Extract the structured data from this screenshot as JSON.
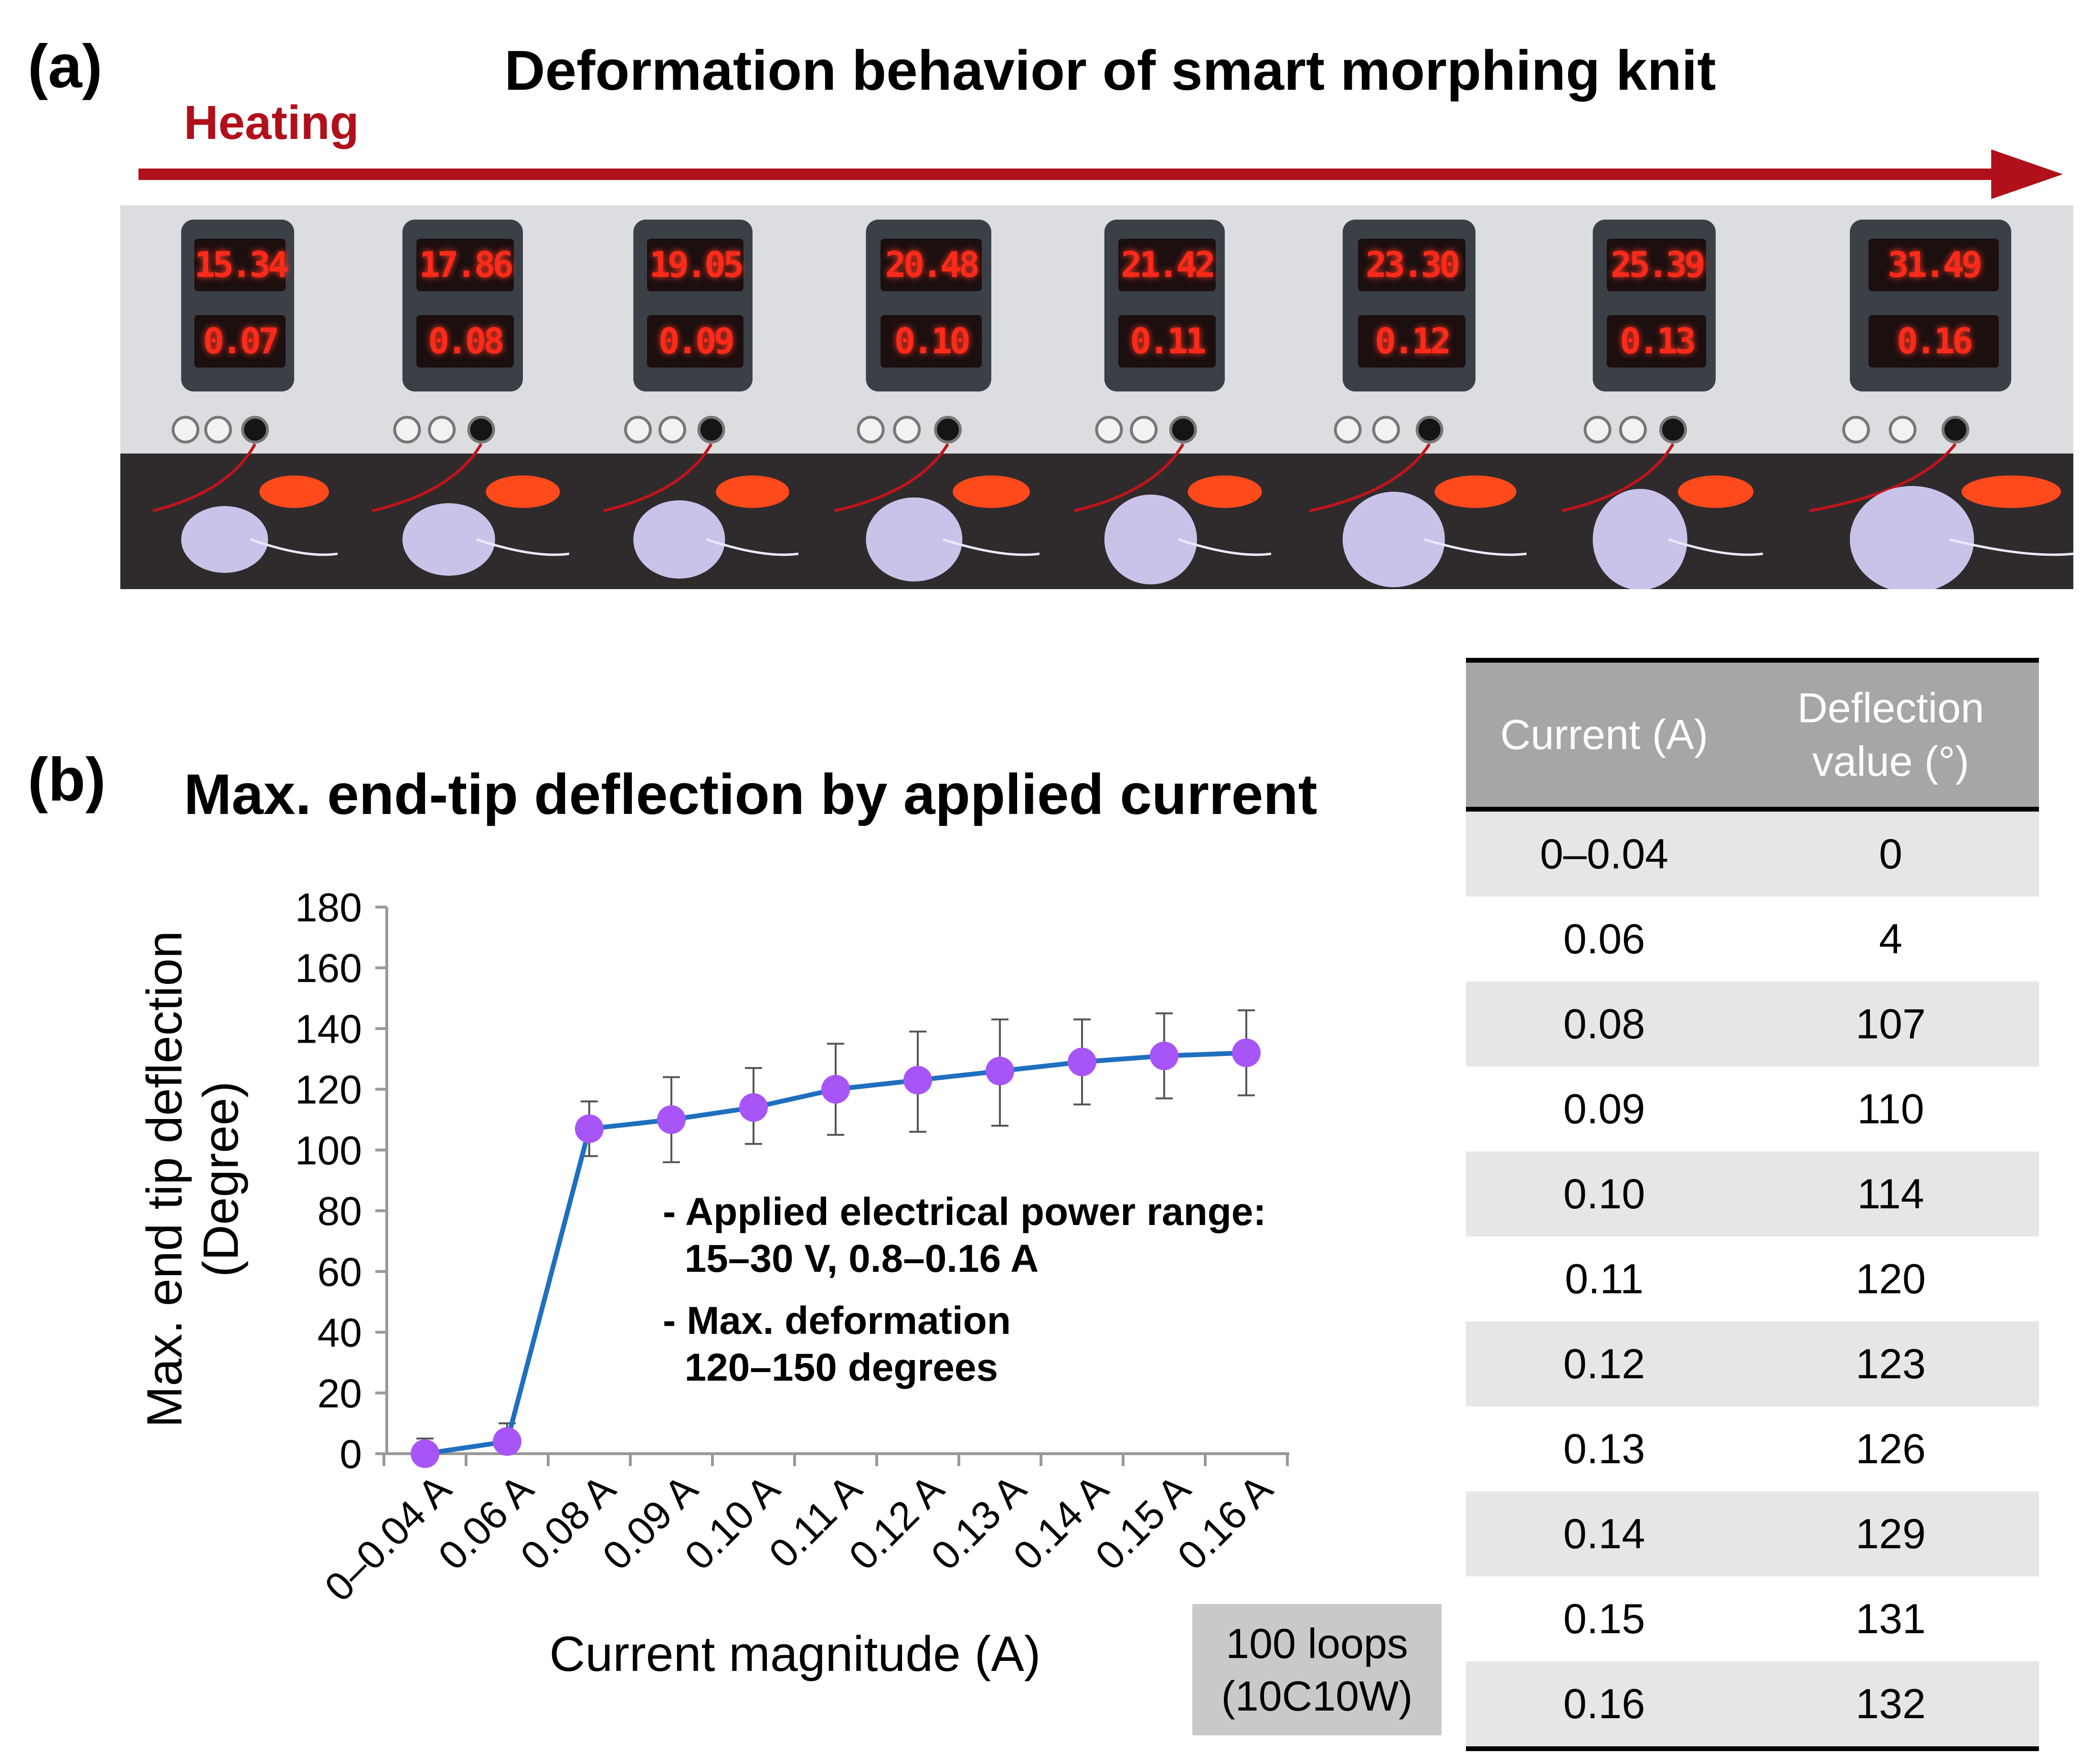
{
  "panel_a": {
    "label": "(a)",
    "title": "Deformation behavior of smart morphing knit",
    "arrow_label": "Heating",
    "arrow_color": "#b0101a",
    "frames": [
      {
        "voltage": "15.34",
        "current": "0.07"
      },
      {
        "voltage": "17.86",
        "current": "0.08"
      },
      {
        "voltage": "19.05",
        "current": "0.09"
      },
      {
        "voltage": "20.48",
        "current": "0.10"
      },
      {
        "voltage": "21.42",
        "current": "0.11"
      },
      {
        "voltage": "23.30",
        "current": "0.12"
      },
      {
        "voltage": "25.39",
        "current": "0.13"
      },
      {
        "voltage": "31.49",
        "current": "0.16"
      }
    ]
  },
  "panel_b": {
    "label": "(b)",
    "title": "Max. end-tip deflection by applied current",
    "annotation": [
      "- Applied electrical power range:\n  15–30 V, 0.8–0.16 A",
      "- Max. deformation\n  120–150 degrees"
    ],
    "loops_box": [
      "100 loops",
      "(10C10W)"
    ],
    "table": {
      "headers": [
        "Current (A)",
        "Deflection value (°)"
      ],
      "rows": [
        [
          "0–0.04",
          "0"
        ],
        [
          "0.06",
          "4"
        ],
        [
          "0.08",
          "107"
        ],
        [
          "0.09",
          "110"
        ],
        [
          "0.10",
          "114"
        ],
        [
          "0.11",
          "120"
        ],
        [
          "0.12",
          "123"
        ],
        [
          "0.13",
          "126"
        ],
        [
          "0.14",
          "129"
        ],
        [
          "0.15",
          "131"
        ],
        [
          "0.16",
          "132"
        ]
      ]
    }
  },
  "chart_data": {
    "type": "line",
    "title": "Max. end-tip deflection by applied current",
    "xlabel": "Current magnitude (A)",
    "ylabel": [
      "Max.  end tip deflection",
      "(Degree)"
    ],
    "categories": [
      "0–0.04 A",
      "0.06 A",
      "0.08 A",
      "0.09 A",
      "0.10 A",
      "0.11 A",
      "0.12 A",
      "0.13 A",
      "0.14 A",
      "0.15 A",
      "0.16 A"
    ],
    "series": [
      {
        "name": "Max. end tip deflection",
        "values": [
          0,
          4,
          107,
          110,
          114,
          120,
          123,
          126,
          129,
          131,
          132
        ],
        "error_low": [
          0,
          2,
          98,
          96,
          102,
          105,
          106,
          108,
          115,
          117,
          118
        ],
        "error_high": [
          5,
          10,
          116,
          124,
          127,
          135,
          139,
          143,
          143,
          145,
          146
        ],
        "line_color": "#1f6fbf",
        "marker_color": "#a855f7"
      }
    ],
    "ylim": [
      0,
      180
    ],
    "yticks": [
      0,
      20,
      40,
      60,
      80,
      100,
      120,
      140,
      160,
      180
    ],
    "grid": false,
    "legend": "none"
  }
}
